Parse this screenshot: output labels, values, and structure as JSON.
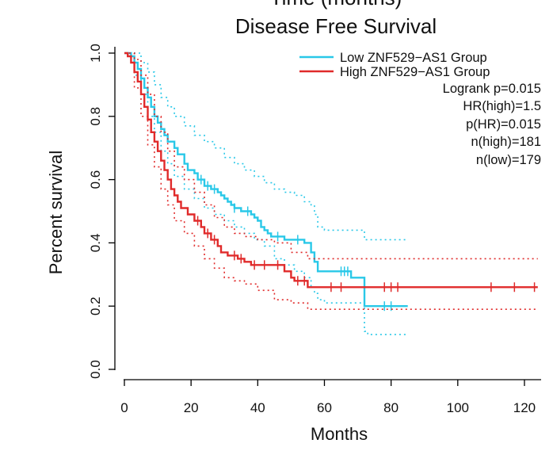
{
  "chart_data": {
    "type": "line",
    "top_title_fragment": "Time (months)",
    "title": "Disease Free Survival",
    "xlabel": "Months",
    "ylabel": "Percent survival",
    "xlim": [
      0,
      125
    ],
    "ylim": [
      0,
      1.0
    ],
    "xticks": [
      0,
      20,
      40,
      60,
      80,
      100,
      120
    ],
    "yticks": [
      0.0,
      0.2,
      0.4,
      0.6,
      0.8,
      1.0
    ],
    "ytick_labels": [
      "0.0",
      "0.2",
      "0.4",
      "0.6",
      "0.8",
      "1.0"
    ],
    "legend": {
      "position": "top-right",
      "entries": [
        {
          "name": "Low ZNF529−AS1 Group",
          "color": "#29c8e8"
        },
        {
          "name": "High ZNF529−AS1 Group",
          "color": "#e02a2a"
        }
      ]
    },
    "stats": [
      "Logrank p=0.015",
      "HR(high)=1.5",
      "p(HR)=0.015",
      "n(high)=181",
      "n(low)=179"
    ],
    "series": [
      {
        "name": "Low ZNF529−AS1 Group",
        "color": "#29c8e8",
        "steps": [
          [
            0,
            1.0
          ],
          [
            2,
            0.99
          ],
          [
            3,
            0.97
          ],
          [
            4,
            0.95
          ],
          [
            5,
            0.92
          ],
          [
            6,
            0.89
          ],
          [
            7,
            0.86
          ],
          [
            8,
            0.83
          ],
          [
            9,
            0.8
          ],
          [
            10,
            0.78
          ],
          [
            11,
            0.76
          ],
          [
            12,
            0.74
          ],
          [
            13,
            0.72
          ],
          [
            15,
            0.7
          ],
          [
            16,
            0.68
          ],
          [
            18,
            0.65
          ],
          [
            19,
            0.63
          ],
          [
            21,
            0.62
          ],
          [
            22,
            0.6
          ],
          [
            24,
            0.58
          ],
          [
            26,
            0.57
          ],
          [
            28,
            0.56
          ],
          [
            29,
            0.55
          ],
          [
            30,
            0.54
          ],
          [
            31,
            0.53
          ],
          [
            32,
            0.52
          ],
          [
            33,
            0.51
          ],
          [
            35,
            0.5
          ],
          [
            38,
            0.49
          ],
          [
            39,
            0.48
          ],
          [
            40,
            0.47
          ],
          [
            41,
            0.45
          ],
          [
            42,
            0.44
          ],
          [
            43,
            0.43
          ],
          [
            44,
            0.42
          ],
          [
            48,
            0.41
          ],
          [
            54,
            0.4
          ],
          [
            56,
            0.37
          ],
          [
            57,
            0.34
          ],
          [
            58,
            0.31
          ],
          [
            68,
            0.29
          ],
          [
            72,
            0.2
          ],
          [
            85,
            0.2
          ]
        ],
        "censor_times": [
          23,
          25,
          27,
          33,
          37,
          46,
          52,
          65,
          66,
          67,
          78,
          80
        ],
        "ci_upper": [
          [
            0,
            1.0
          ],
          [
            3,
            1.0
          ],
          [
            5,
            0.97
          ],
          [
            7,
            0.94
          ],
          [
            9,
            0.9
          ],
          [
            11,
            0.86
          ],
          [
            13,
            0.83
          ],
          [
            15,
            0.8
          ],
          [
            18,
            0.77
          ],
          [
            21,
            0.74
          ],
          [
            24,
            0.72
          ],
          [
            27,
            0.7
          ],
          [
            30,
            0.67
          ],
          [
            33,
            0.65
          ],
          [
            36,
            0.63
          ],
          [
            39,
            0.61
          ],
          [
            42,
            0.59
          ],
          [
            45,
            0.57
          ],
          [
            48,
            0.56
          ],
          [
            51,
            0.55
          ],
          [
            54,
            0.53
          ],
          [
            56,
            0.52
          ],
          [
            57,
            0.49
          ],
          [
            58,
            0.45
          ],
          [
            60,
            0.44
          ],
          [
            72,
            0.41
          ],
          [
            73,
            0.41
          ],
          [
            85,
            0.41
          ]
        ],
        "ci_lower": [
          [
            0,
            1.0
          ],
          [
            3,
            0.93
          ],
          [
            5,
            0.87
          ],
          [
            7,
            0.8
          ],
          [
            9,
            0.75
          ],
          [
            11,
            0.69
          ],
          [
            13,
            0.65
          ],
          [
            15,
            0.61
          ],
          [
            18,
            0.57
          ],
          [
            21,
            0.54
          ],
          [
            24,
            0.51
          ],
          [
            27,
            0.49
          ],
          [
            30,
            0.47
          ],
          [
            33,
            0.45
          ],
          [
            36,
            0.43
          ],
          [
            39,
            0.41
          ],
          [
            42,
            0.39
          ],
          [
            45,
            0.35
          ],
          [
            48,
            0.33
          ],
          [
            51,
            0.31
          ],
          [
            54,
            0.29
          ],
          [
            56,
            0.26
          ],
          [
            57,
            0.24
          ],
          [
            58,
            0.22
          ],
          [
            60,
            0.21
          ],
          [
            72,
            0.12
          ],
          [
            73,
            0.11
          ],
          [
            85,
            0.11
          ]
        ]
      },
      {
        "name": "High ZNF529−AS1 Group",
        "color": "#e02a2a",
        "steps": [
          [
            0,
            1.0
          ],
          [
            1,
            0.99
          ],
          [
            2,
            0.97
          ],
          [
            3,
            0.94
          ],
          [
            4,
            0.91
          ],
          [
            5,
            0.87
          ],
          [
            6,
            0.83
          ],
          [
            7,
            0.79
          ],
          [
            8,
            0.75
          ],
          [
            9,
            0.72
          ],
          [
            10,
            0.69
          ],
          [
            11,
            0.66
          ],
          [
            12,
            0.63
          ],
          [
            13,
            0.6
          ],
          [
            14,
            0.57
          ],
          [
            15,
            0.55
          ],
          [
            16,
            0.53
          ],
          [
            17,
            0.51
          ],
          [
            19,
            0.49
          ],
          [
            21,
            0.47
          ],
          [
            23,
            0.45
          ],
          [
            24,
            0.43
          ],
          [
            26,
            0.41
          ],
          [
            28,
            0.39
          ],
          [
            29,
            0.37
          ],
          [
            31,
            0.36
          ],
          [
            34,
            0.35
          ],
          [
            36,
            0.34
          ],
          [
            38,
            0.33
          ],
          [
            48,
            0.31
          ],
          [
            50,
            0.29
          ],
          [
            51,
            0.28
          ],
          [
            55,
            0.26
          ],
          [
            60,
            0.26
          ],
          [
            124,
            0.26
          ]
        ],
        "censor_times": [
          22,
          25,
          27,
          33,
          35,
          39,
          42,
          46,
          52,
          54,
          62,
          65,
          78,
          80,
          82,
          110,
          117,
          123
        ],
        "ci_upper": [
          [
            0,
            1.0
          ],
          [
            3,
            0.98
          ],
          [
            5,
            0.93
          ],
          [
            7,
            0.87
          ],
          [
            9,
            0.8
          ],
          [
            11,
            0.75
          ],
          [
            13,
            0.69
          ],
          [
            15,
            0.64
          ],
          [
            18,
            0.6
          ],
          [
            21,
            0.56
          ],
          [
            24,
            0.52
          ],
          [
            27,
            0.48
          ],
          [
            30,
            0.45
          ],
          [
            33,
            0.43
          ],
          [
            36,
            0.42
          ],
          [
            40,
            0.41
          ],
          [
            45,
            0.4
          ],
          [
            50,
            0.37
          ],
          [
            55,
            0.35
          ],
          [
            60,
            0.35
          ],
          [
            124,
            0.35
          ]
        ],
        "ci_lower": [
          [
            0,
            1.0
          ],
          [
            3,
            0.89
          ],
          [
            5,
            0.8
          ],
          [
            7,
            0.71
          ],
          [
            9,
            0.64
          ],
          [
            11,
            0.57
          ],
          [
            13,
            0.52
          ],
          [
            15,
            0.47
          ],
          [
            18,
            0.43
          ],
          [
            21,
            0.39
          ],
          [
            24,
            0.35
          ],
          [
            27,
            0.32
          ],
          [
            30,
            0.29
          ],
          [
            33,
            0.28
          ],
          [
            36,
            0.27
          ],
          [
            40,
            0.25
          ],
          [
            45,
            0.22
          ],
          [
            50,
            0.21
          ],
          [
            55,
            0.19
          ],
          [
            60,
            0.19
          ],
          [
            124,
            0.19
          ]
        ]
      }
    ]
  }
}
